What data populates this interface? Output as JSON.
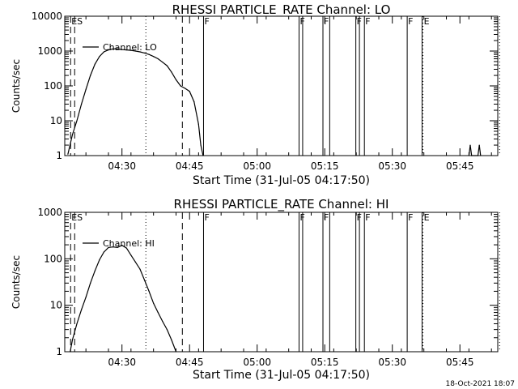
{
  "stamp": "18-Oct-2021 18:07",
  "chart_data": [
    {
      "type": "line",
      "title": "RHESSI PARTICLE_RATE Channel: LO",
      "xlabel": "Start Time (31-Jul-05 04:17:50)",
      "ylabel": "Counts/sec",
      "y_scale": "log",
      "ylim": [
        1,
        10000
      ],
      "y_ticks": [
        "1",
        "10",
        "100",
        "1000",
        "10000"
      ],
      "xlim_minutes_after_0417": [
        0.3,
        96.4
      ],
      "x_ticks": [
        "04:30",
        "04:45",
        "05:00",
        "05:15",
        "05:30",
        "05:45"
      ],
      "legend": "Channel: LO",
      "legend_position": "top-left",
      "series": [
        {
          "name": "Channel: LO",
          "x": [
            "04:18",
            "04:19",
            "04:20",
            "04:21",
            "04:22",
            "04:23",
            "04:24",
            "04:25",
            "04:26",
            "04:27",
            "04:28",
            "04:29",
            "04:30",
            "04:31",
            "04:32",
            "04:33",
            "04:34",
            "04:35",
            "04:36",
            "04:37",
            "04:38",
            "04:39",
            "04:40",
            "04:41",
            "04:42",
            "04:43",
            "04:44",
            "04:45",
            "04:46",
            "04:47",
            "04:47.5",
            "04:48"
          ],
          "values": [
            1.1,
            4,
            10,
            30,
            80,
            200,
            420,
            700,
            950,
            1080,
            1150,
            1150,
            1100,
            1080,
            1050,
            1000,
            950,
            880,
            800,
            700,
            600,
            480,
            380,
            250,
            150,
            100,
            85,
            70,
            35,
            8,
            2,
            1
          ]
        },
        {
          "name": "",
          "x": [
            "05:47",
            "05:47.3",
            "05:47.6",
            "05:49",
            "05:49.3",
            "05:49.6"
          ],
          "values": [
            1,
            2,
            1,
            1,
            2,
            1
          ]
        }
      ],
      "vlines": [
        {
          "time": "04:18.6",
          "style": "dashed",
          "label": "ES"
        },
        {
          "time": "04:19.5",
          "style": "dashed",
          "label": ""
        },
        {
          "time": "04:35.3",
          "style": "dotted",
          "label": ""
        },
        {
          "time": "04:43.4",
          "style": "dashed",
          "label": ""
        },
        {
          "time": "04:48.1",
          "style": "solid",
          "label": "F"
        },
        {
          "time": "05:09.3",
          "style": "solid",
          "label": "F"
        },
        {
          "time": "05:10.1",
          "style": "solid",
          "label": ""
        },
        {
          "time": "05:14.6",
          "style": "solid",
          "label": "F"
        },
        {
          "time": "05:16.1",
          "style": "solid",
          "label": ""
        },
        {
          "time": "05:21.9",
          "style": "solid",
          "label": "F"
        },
        {
          "time": "05:22.7",
          "style": "solid",
          "label": ""
        },
        {
          "time": "05:23.8",
          "style": "solid",
          "label": "F"
        },
        {
          "time": "05:33.3",
          "style": "solid",
          "label": "F"
        },
        {
          "time": "05:36.6",
          "style": "solid",
          "label": ""
        },
        {
          "time": "05:36.8",
          "style": "dotted",
          "label": "E"
        },
        {
          "time": "05:53.8",
          "style": "dotted",
          "label": ""
        }
      ]
    },
    {
      "type": "line",
      "title": "RHESSI PARTICLE_RATE Channel: HI",
      "xlabel": "Start Time (31-Jul-05 04:17:50)",
      "ylabel": "Counts/sec",
      "y_scale": "log",
      "ylim": [
        1,
        1000
      ],
      "y_ticks": [
        "1",
        "10",
        "100",
        "1000"
      ],
      "xlim_minutes_after_0417": [
        0.3,
        96.4
      ],
      "x_ticks": [
        "04:30",
        "04:45",
        "05:00",
        "05:15",
        "05:30",
        "05:45"
      ],
      "legend": "Channel: HI",
      "legend_position": "top-left",
      "series": [
        {
          "name": "Channel: HI",
          "x": [
            "04:18.5",
            "04:19",
            "04:20",
            "04:21",
            "04:22",
            "04:23",
            "04:24",
            "04:25",
            "04:26",
            "04:27",
            "04:28",
            "04:29",
            "04:30",
            "04:31",
            "04:32",
            "04:33",
            "04:34",
            "04:35",
            "04:36",
            "04:37",
            "04:38",
            "04:39",
            "04:40",
            "04:41",
            "04:42"
          ],
          "values": [
            1,
            1.8,
            4,
            8,
            15,
            30,
            55,
            95,
            140,
            175,
            180,
            175,
            195,
            170,
            120,
            85,
            60,
            35,
            20,
            11,
            7,
            4.5,
            3,
            1.8,
            1
          ]
        }
      ],
      "vlines": [
        {
          "time": "04:18.6",
          "style": "dashed",
          "label": "ES"
        },
        {
          "time": "04:19.5",
          "style": "dashed",
          "label": ""
        },
        {
          "time": "04:35.3",
          "style": "dotted",
          "label": ""
        },
        {
          "time": "04:43.4",
          "style": "dashed",
          "label": ""
        },
        {
          "time": "04:48.1",
          "style": "solid",
          "label": "F"
        },
        {
          "time": "05:09.3",
          "style": "solid",
          "label": "F"
        },
        {
          "time": "05:10.1",
          "style": "solid",
          "label": ""
        },
        {
          "time": "05:14.6",
          "style": "solid",
          "label": "F"
        },
        {
          "time": "05:16.1",
          "style": "solid",
          "label": ""
        },
        {
          "time": "05:21.9",
          "style": "solid",
          "label": "F"
        },
        {
          "time": "05:22.7",
          "style": "solid",
          "label": ""
        },
        {
          "time": "05:23.8",
          "style": "solid",
          "label": "F"
        },
        {
          "time": "05:33.3",
          "style": "solid",
          "label": "F"
        },
        {
          "time": "05:36.6",
          "style": "solid",
          "label": ""
        },
        {
          "time": "05:36.8",
          "style": "dotted",
          "label": "E"
        },
        {
          "time": "05:53.8",
          "style": "dotted",
          "label": ""
        }
      ]
    }
  ]
}
